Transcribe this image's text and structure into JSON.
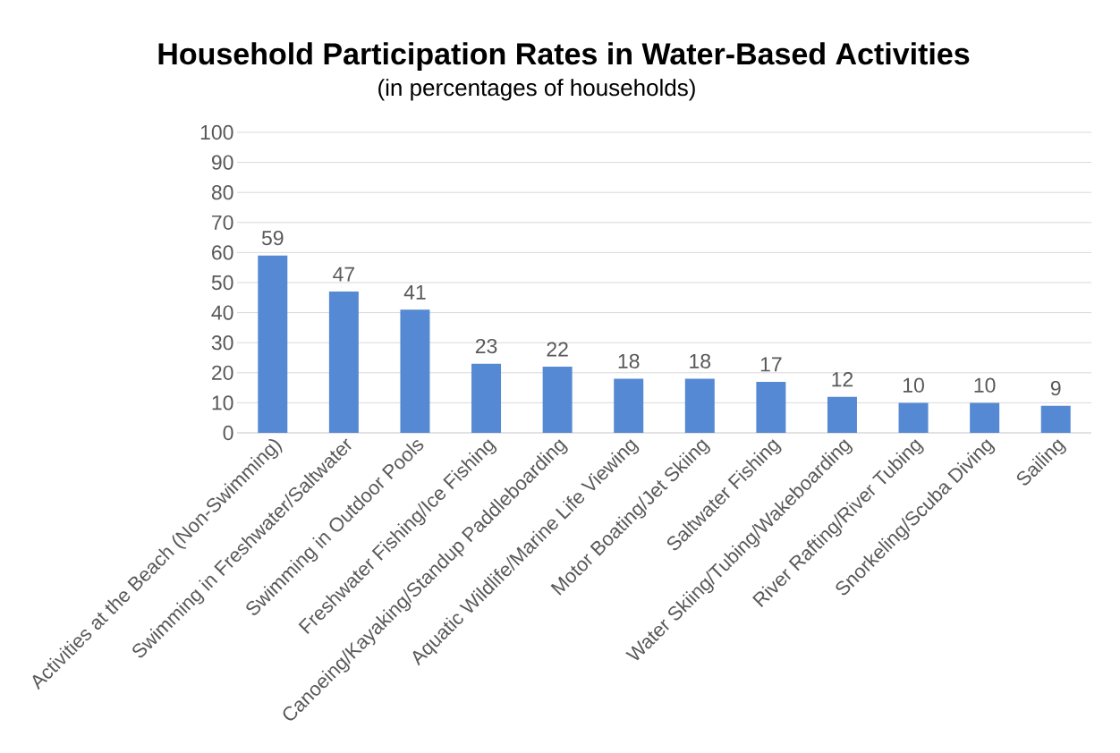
{
  "chart_data": {
    "type": "bar",
    "title": "Household Participation Rates in Water-Based Activities",
    "subtitle": "(in percentages of households)",
    "categories": [
      "Activities at the Beach (Non-Swimming)",
      "Swimming in Freshwater/Saltwater",
      "Swimming in Outdoor Pools",
      "Freshwater Fishing/Ice Fishing",
      "Canoeing/Kayaking/Standup Paddleboarding",
      "Aquatic Wildlife/Marine Life Viewing",
      "Motor Boating/Jet Skiing",
      "Saltwater Fishing",
      "Water Skiing/Tubing/Wakeboarding",
      "River Rafting/River Tubing",
      "Snorkeling/Scuba Diving",
      "Sailing"
    ],
    "values": [
      59,
      47,
      41,
      23,
      22,
      18,
      18,
      17,
      12,
      10,
      10,
      9
    ],
    "color": "#5689d4",
    "ylim": [
      0,
      100
    ],
    "yticks": [
      0,
      10,
      20,
      30,
      40,
      50,
      60,
      70,
      80,
      90,
      100
    ],
    "grid": "y",
    "data_labels": true
  }
}
